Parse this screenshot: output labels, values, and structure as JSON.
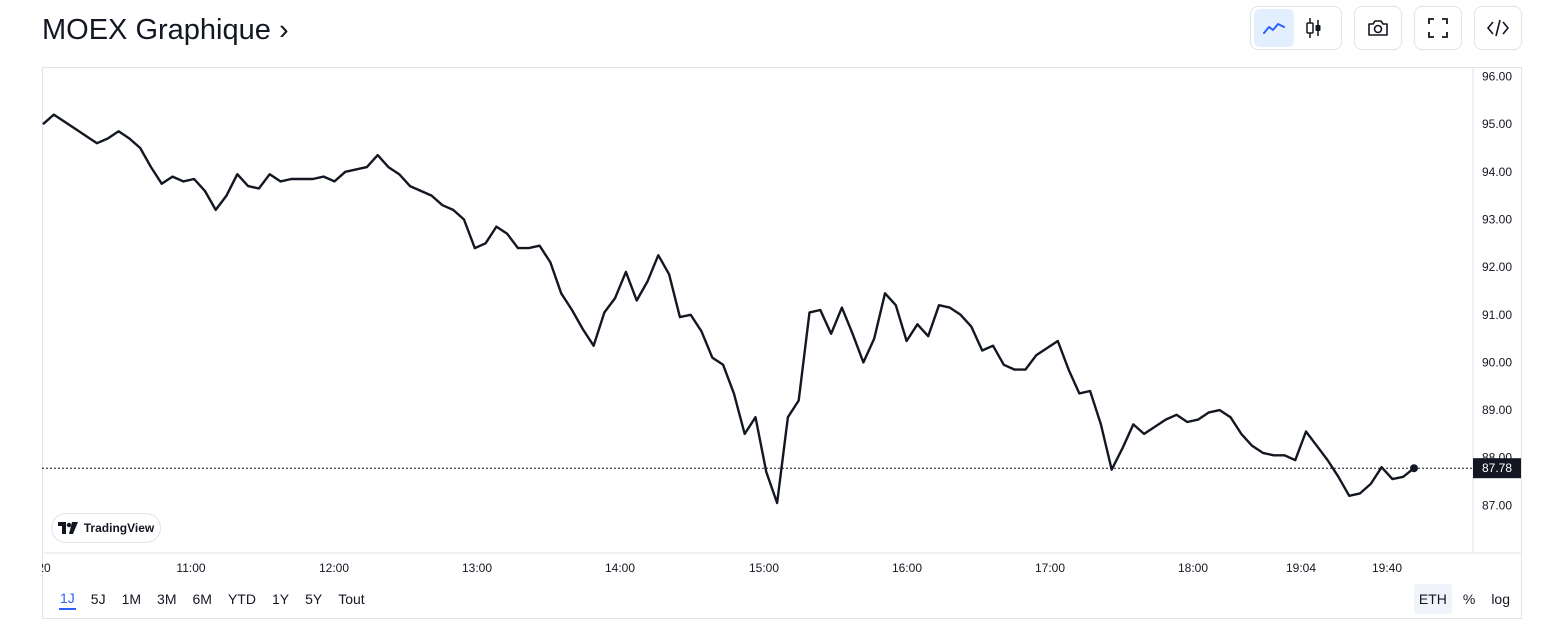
{
  "header": {
    "title": "MOEX Graphique ›"
  },
  "toolbar": {
    "icons": [
      "line-chart-icon",
      "candlestick-icon",
      "camera-icon",
      "fullscreen-icon",
      "embed-code-icon"
    ],
    "accent_color": "#2962ff"
  },
  "watermark": {
    "label": "TradingView"
  },
  "ranges": {
    "items": [
      "1J",
      "5J",
      "1M",
      "3M",
      "6M",
      "YTD",
      "1Y",
      "5Y",
      "Tout"
    ],
    "active": "1J"
  },
  "options": {
    "eth": "ETH",
    "percent": "%",
    "log": "log"
  },
  "chart_data": {
    "type": "line",
    "line_color": "#131722",
    "y_ticks": [
      "96.00",
      "95.00",
      "94.00",
      "93.00",
      "92.00",
      "91.00",
      "90.00",
      "89.00",
      "88.00",
      "87.00"
    ],
    "ylim": [
      86.0,
      96.2
    ],
    "x_ticks": [
      "20",
      "11:00",
      "12:00",
      "13:00",
      "14:00",
      "15:00",
      "16:00",
      "17:00",
      "18:00",
      "19:04",
      "19:40"
    ],
    "last_price": "87.78",
    "series": [
      {
        "values": [
          95.0,
          95.2,
          95.05,
          94.9,
          94.75,
          94.6,
          94.7,
          94.85,
          94.7,
          94.5,
          94.1,
          93.75,
          93.9,
          93.8,
          93.85,
          93.6,
          93.2,
          93.5,
          93.95,
          93.7,
          93.65,
          93.95,
          93.8,
          93.85,
          93.85,
          93.85,
          93.9,
          93.8,
          94.0,
          94.05,
          94.1,
          94.35,
          94.1,
          93.95,
          93.7,
          93.6,
          93.5,
          93.3,
          93.2,
          93.0,
          92.4,
          92.5,
          92.85,
          92.7,
          92.4,
          92.4,
          92.45,
          92.1,
          91.45,
          91.1,
          90.7,
          90.35,
          91.05,
          91.35,
          91.9,
          91.3,
          91.7,
          92.25,
          91.85,
          90.95,
          91.0,
          90.65,
          90.1,
          89.95,
          89.35,
          88.5,
          88.85,
          87.7,
          87.05,
          88.85,
          89.2,
          91.05,
          91.1,
          90.6,
          91.15,
          90.6,
          90.0,
          90.5,
          91.45,
          91.2,
          90.45,
          90.8,
          90.55,
          91.2,
          91.15,
          91.0,
          90.75,
          90.25,
          90.35,
          89.95,
          89.85,
          89.85,
          90.15,
          90.3,
          90.45,
          89.85,
          89.35,
          89.4,
          88.7,
          87.75,
          88.2,
          88.7,
          88.5,
          88.65,
          88.8,
          88.9,
          88.75,
          88.8,
          88.95,
          89.0,
          88.85,
          88.5,
          88.25,
          88.1,
          88.05,
          88.05,
          87.95,
          88.55,
          88.25,
          87.95,
          87.6,
          87.2,
          87.25,
          87.45,
          87.8,
          87.55,
          87.6,
          87.78
        ]
      }
    ]
  }
}
